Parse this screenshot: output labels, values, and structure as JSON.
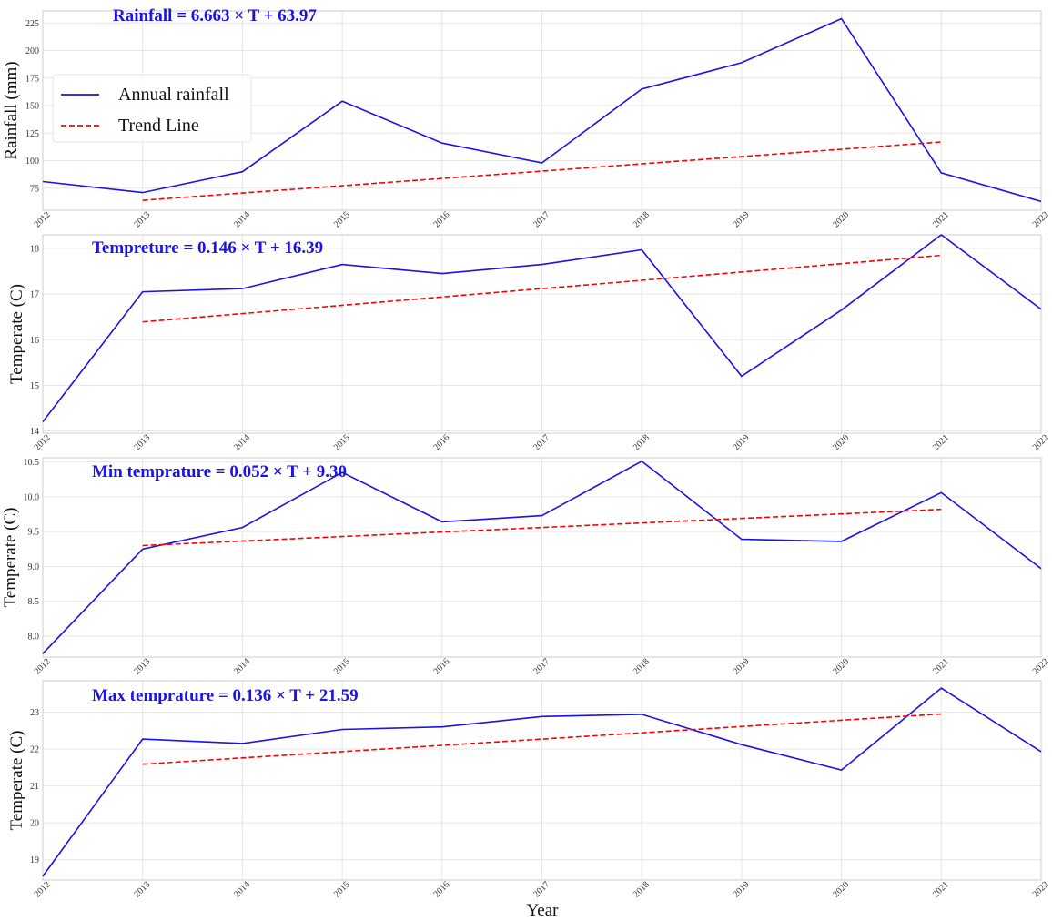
{
  "colors": {
    "annual": "#1a12e8",
    "trend": "#ff0000",
    "equation": "#1a12e8"
  },
  "legend": {
    "placement": "upper-left of top panel",
    "items": [
      {
        "label": "Annual rainfall",
        "style": "solid",
        "color": "#1a12e8"
      },
      {
        "label": "Trend Line",
        "style": "dashed",
        "color": "#ff0000"
      }
    ]
  },
  "xlabel": "Year",
  "chart_data": [
    {
      "type": "line",
      "annotation": "Rainfall = 6.663 × T + 63.97",
      "ylabel": "Rainfall (mm)",
      "x": [
        2012,
        2013,
        2014,
        2015,
        2016,
        2017,
        2018,
        2019,
        2020,
        2021,
        2022
      ],
      "ylim": [
        55,
        236
      ],
      "yticks": [
        75,
        100,
        125,
        150,
        175,
        200,
        225
      ],
      "ytick_labels": [
        "75",
        "100",
        "125",
        "150",
        "175",
        "200",
        "225"
      ],
      "grid": true,
      "series": [
        {
          "name": "Annual rainfall",
          "style": "solid",
          "color": "#1a12e8",
          "x": [
            2012,
            2013,
            2014,
            2015,
            2016,
            2017,
            2018,
            2019,
            2020,
            2021,
            2022
          ],
          "values": [
            81,
            71,
            90,
            154,
            116,
            98,
            165,
            189,
            229,
            89,
            63
          ]
        },
        {
          "name": "Trend Line",
          "style": "dashed",
          "color": "#ff0000",
          "x": [
            2013,
            2021
          ],
          "values": [
            64,
            117
          ]
        }
      ]
    },
    {
      "type": "line",
      "annotation": "Tempreture = 0.146 × T + 16.39",
      "ylabel": "Temperate (C)",
      "x": [
        2012,
        2013,
        2014,
        2015,
        2016,
        2017,
        2018,
        2019,
        2020,
        2021,
        2022
      ],
      "ylim": [
        13.95,
        18.3
      ],
      "yticks": [
        14,
        15,
        16,
        17,
        18
      ],
      "ytick_labels": [
        "14",
        "15",
        "16",
        "17",
        "18"
      ],
      "grid": true,
      "series": [
        {
          "name": "Annual",
          "style": "solid",
          "color": "#1a12e8",
          "x": [
            2012,
            2013,
            2014,
            2015,
            2016,
            2017,
            2018,
            2019,
            2020,
            2021,
            2022
          ],
          "values": [
            14.2,
            17.05,
            17.12,
            17.65,
            17.45,
            17.65,
            17.97,
            15.2,
            16.65,
            18.3,
            16.67
          ]
        },
        {
          "name": "Trend",
          "style": "dashed",
          "color": "#ff0000",
          "x": [
            2013,
            2021
          ],
          "values": [
            16.39,
            17.85
          ]
        }
      ]
    },
    {
      "type": "line",
      "annotation": "Min temprature = 0.052 × T + 9.30",
      "ylabel": "Temperate (C)",
      "x": [
        2012,
        2013,
        2014,
        2015,
        2016,
        2017,
        2018,
        2019,
        2020,
        2021,
        2022
      ],
      "ylim": [
        7.7,
        10.56
      ],
      "yticks": [
        8.0,
        8.5,
        9.0,
        9.5,
        10.0,
        10.5
      ],
      "ytick_labels": [
        "8.0",
        "8.5",
        "9.0",
        "9.5",
        "10.0",
        "10.5"
      ],
      "grid": true,
      "series": [
        {
          "name": "Annual",
          "style": "solid",
          "color": "#1a12e8",
          "x": [
            2012,
            2013,
            2014,
            2015,
            2016,
            2017,
            2018,
            2019,
            2020,
            2021,
            2022
          ],
          "values": [
            7.75,
            9.25,
            9.56,
            10.35,
            9.64,
            9.73,
            10.51,
            9.39,
            9.36,
            10.06,
            8.97
          ]
        },
        {
          "name": "Trend",
          "style": "dashed",
          "color": "#ff0000",
          "x": [
            2013,
            2021
          ],
          "values": [
            9.3,
            9.82
          ]
        }
      ]
    },
    {
      "type": "line",
      "annotation": "Max temprature = 0.136 × T + 21.59",
      "ylabel": "Temperate (C)",
      "x": [
        2012,
        2013,
        2014,
        2015,
        2016,
        2017,
        2018,
        2019,
        2020,
        2021,
        2022
      ],
      "ylim": [
        18.45,
        23.85
      ],
      "yticks": [
        19,
        20,
        21,
        22,
        23
      ],
      "ytick_labels": [
        "19",
        "20",
        "21",
        "22",
        "23"
      ],
      "grid": true,
      "series": [
        {
          "name": "Annual",
          "style": "solid",
          "color": "#1a12e8",
          "x": [
            2012,
            2013,
            2014,
            2015,
            2016,
            2017,
            2018,
            2019,
            2020,
            2021,
            2022
          ],
          "values": [
            18.55,
            22.27,
            22.15,
            22.53,
            22.6,
            22.88,
            22.94,
            22.12,
            21.43,
            23.65,
            21.93
          ]
        },
        {
          "name": "Trend",
          "style": "dashed",
          "color": "#ff0000",
          "x": [
            2013,
            2021
          ],
          "values": [
            21.59,
            22.95
          ]
        }
      ]
    }
  ]
}
